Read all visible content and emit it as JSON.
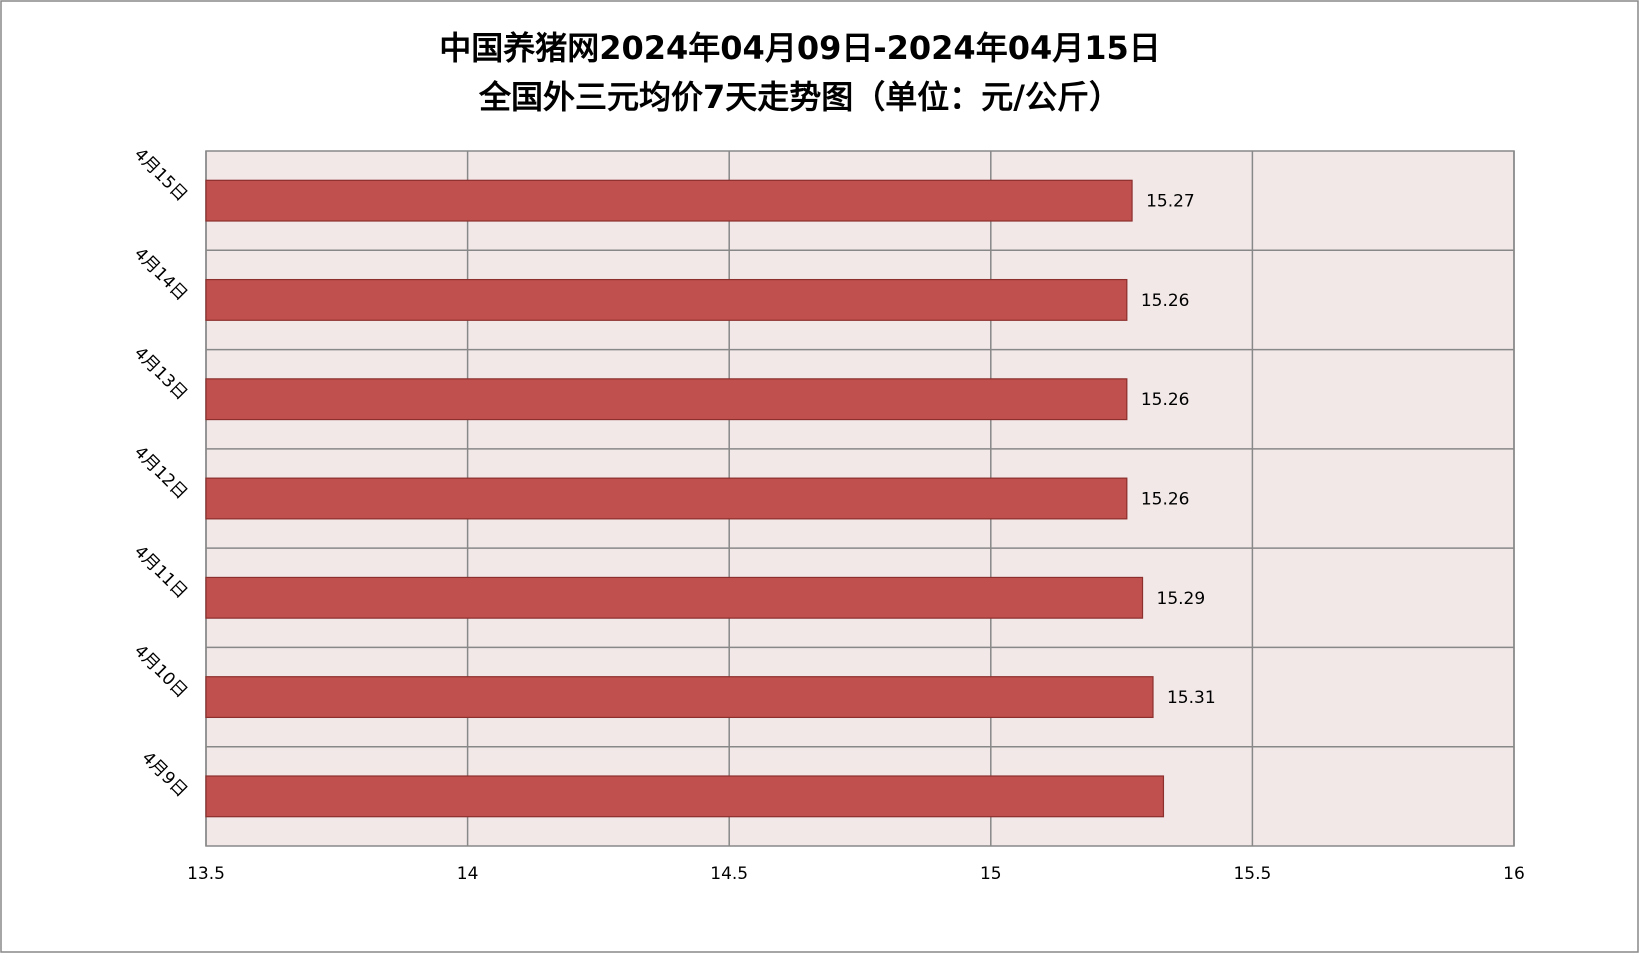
{
  "chart_data": {
    "type": "bar",
    "orientation": "horizontal",
    "title": "中国养猪网2024年04月09日-2024年04月15日",
    "subtitle": "全国外三元均价7天走势图（单位：元/公斤）",
    "categories": [
      "4月9日",
      "4月10日",
      "4月11日",
      "4月12日",
      "4月13日",
      "4月14日",
      "4月15日"
    ],
    "values": [
      15.33,
      15.31,
      15.29,
      15.26,
      15.26,
      15.26,
      15.27
    ],
    "data_labels": [
      false,
      true,
      true,
      true,
      true,
      true,
      true
    ],
    "color": "#c0504d",
    "xlim": [
      13.5,
      16
    ],
    "xticks": [
      13.5,
      14,
      14.5,
      15,
      15.5,
      16
    ],
    "grid": true
  }
}
